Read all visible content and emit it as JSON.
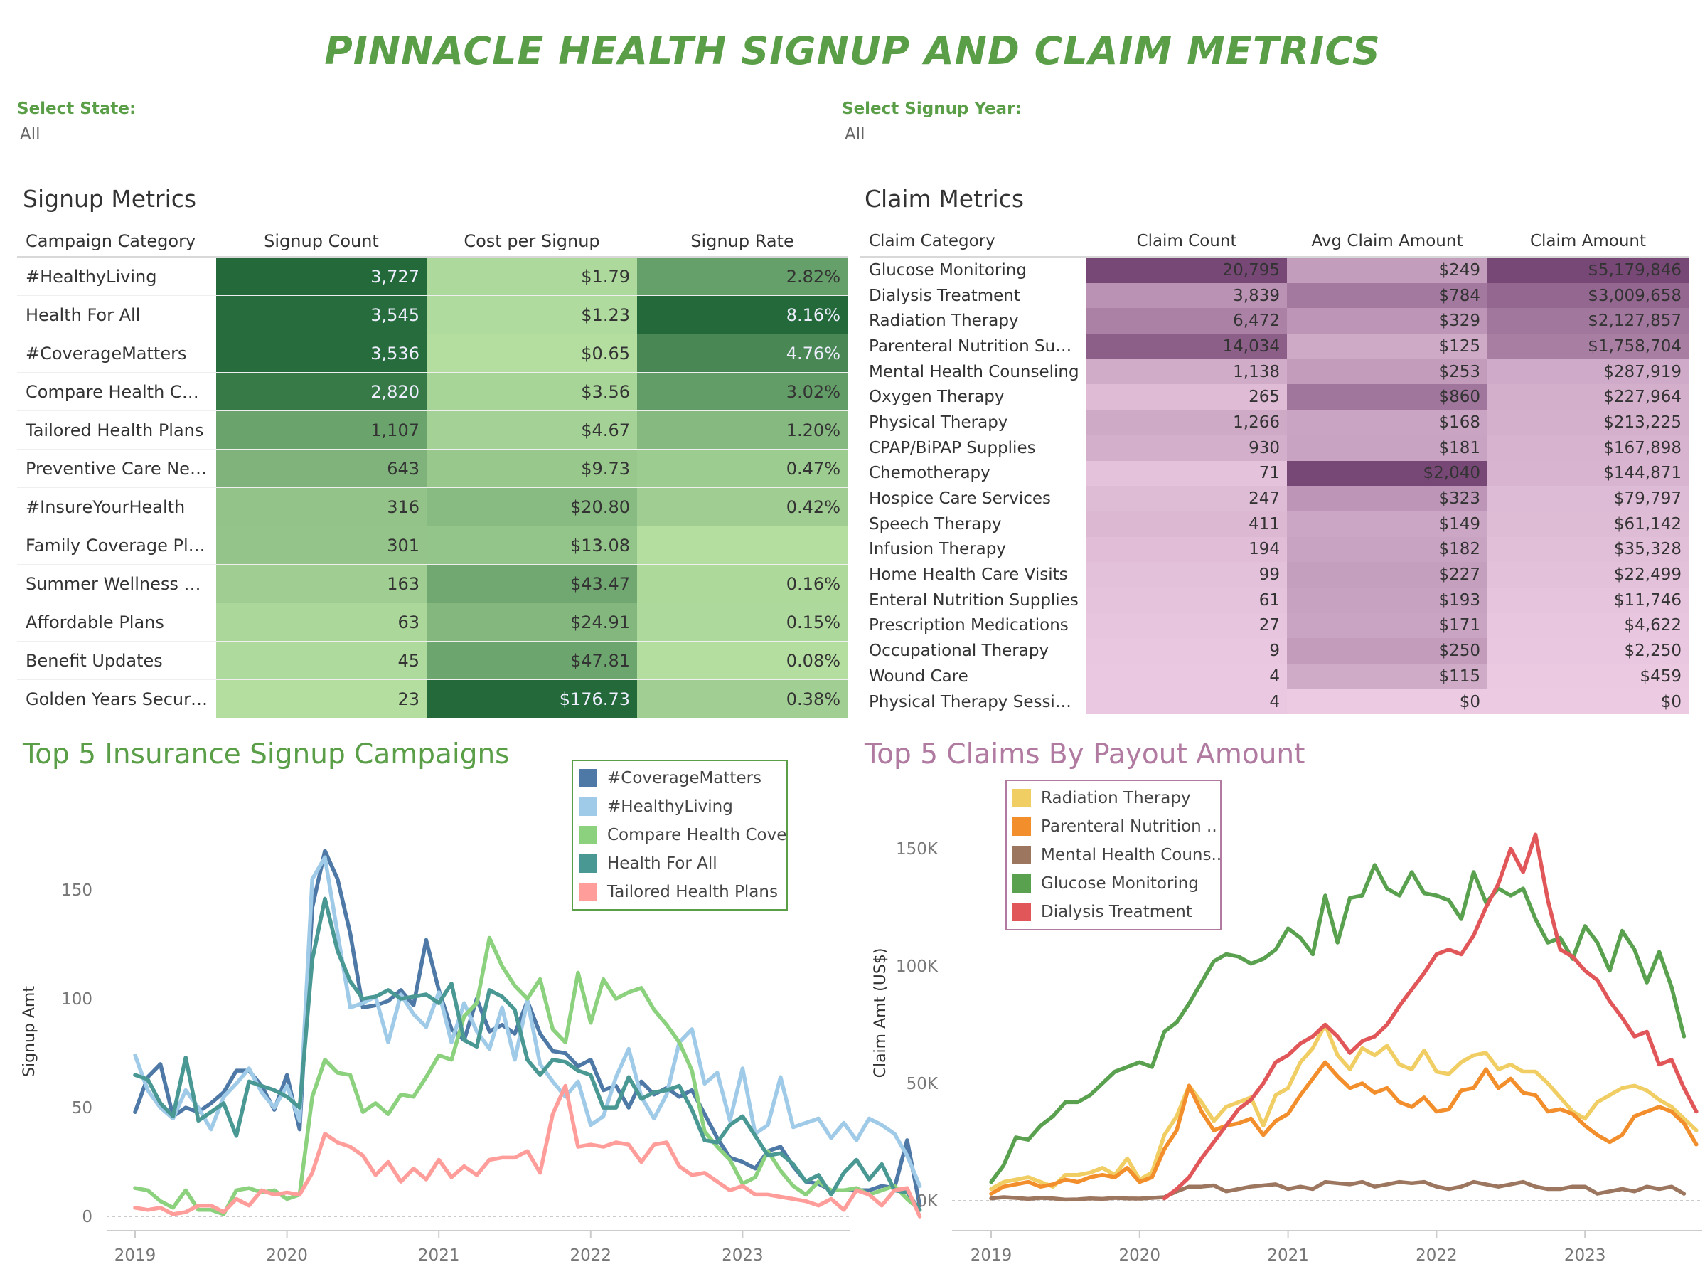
{
  "title": "PINNACLE HEALTH SIGNUP AND CLAIM METRICS",
  "filters": {
    "state": {
      "label": "Select State:",
      "value": "All"
    },
    "year": {
      "label": "Select Signup Year:",
      "value": "All"
    }
  },
  "signup_metrics": {
    "title": "Signup Metrics",
    "columns": [
      "Campaign Category",
      "Signup Count",
      "Cost per Signup",
      "Signup Rate"
    ],
    "rows": [
      {
        "category": "#HealthyLiving",
        "count": "3,727",
        "cost": "$1.79",
        "rate": "2.82%",
        "count_v": 3727,
        "cost_v": 1.79,
        "rate_v": 2.82
      },
      {
        "category": "Health For All",
        "count": "3,545",
        "cost": "$1.23",
        "rate": "8.16%",
        "count_v": 3545,
        "cost_v": 1.23,
        "rate_v": 8.16
      },
      {
        "category": "#CoverageMatters",
        "count": "3,536",
        "cost": "$0.65",
        "rate": "4.76%",
        "count_v": 3536,
        "cost_v": 0.65,
        "rate_v": 4.76
      },
      {
        "category": "Compare Health Cover..",
        "count": "2,820",
        "cost": "$3.56",
        "rate": "3.02%",
        "count_v": 2820,
        "cost_v": 3.56,
        "rate_v": 3.02
      },
      {
        "category": "Tailored Health Plans",
        "count": "1,107",
        "cost": "$4.67",
        "rate": "1.20%",
        "count_v": 1107,
        "cost_v": 4.67,
        "rate_v": 1.2
      },
      {
        "category": "Preventive Care News",
        "count": "643",
        "cost": "$9.73",
        "rate": "0.47%",
        "count_v": 643,
        "cost_v": 9.73,
        "rate_v": 0.47
      },
      {
        "category": "#InsureYourHealth",
        "count": "316",
        "cost": "$20.80",
        "rate": "0.42%",
        "count_v": 316,
        "cost_v": 20.8,
        "rate_v": 0.42
      },
      {
        "category": "Family Coverage Plan",
        "count": "301",
        "cost": "$13.08",
        "rate": "",
        "count_v": 301,
        "cost_v": 13.08,
        "rate_v": null
      },
      {
        "category": "Summer Wellness Tips",
        "count": "163",
        "cost": "$43.47",
        "rate": "0.16%",
        "count_v": 163,
        "cost_v": 43.47,
        "rate_v": 0.16
      },
      {
        "category": "Affordable Plans",
        "count": "63",
        "cost": "$24.91",
        "rate": "0.15%",
        "count_v": 63,
        "cost_v": 24.91,
        "rate_v": 0.15
      },
      {
        "category": "Benefit Updates",
        "count": "45",
        "cost": "$47.81",
        "rate": "0.08%",
        "count_v": 45,
        "cost_v": 47.81,
        "rate_v": 0.08
      },
      {
        "category": "Golden Years Security",
        "count": "23",
        "cost": "$176.73",
        "rate": "0.38%",
        "count_v": 23,
        "cost_v": 176.73,
        "rate_v": 0.38
      }
    ]
  },
  "claim_metrics": {
    "title": "Claim Metrics",
    "columns": [
      "Claim Category",
      "Claim Count",
      "Avg Claim Amount",
      "Claim Amount"
    ],
    "rows": [
      {
        "category": "Glucose Monitoring",
        "count": "20,795",
        "avg": "$249",
        "amount": "$5,179,846",
        "count_v": 20795,
        "avg_v": 249,
        "amount_v": 5179846
      },
      {
        "category": "Dialysis Treatment",
        "count": "3,839",
        "avg": "$784",
        "amount": "$3,009,658",
        "count_v": 3839,
        "avg_v": 784,
        "amount_v": 3009658
      },
      {
        "category": "Radiation Therapy",
        "count": "6,472",
        "avg": "$329",
        "amount": "$2,127,857",
        "count_v": 6472,
        "avg_v": 329,
        "amount_v": 2127857
      },
      {
        "category": "Parenteral Nutrition Supp..",
        "count": "14,034",
        "avg": "$125",
        "amount": "$1,758,704",
        "count_v": 14034,
        "avg_v": 125,
        "amount_v": 1758704
      },
      {
        "category": "Mental Health Counseling",
        "count": "1,138",
        "avg": "$253",
        "amount": "$287,919",
        "count_v": 1138,
        "avg_v": 253,
        "amount_v": 287919
      },
      {
        "category": "Oxygen Therapy",
        "count": "265",
        "avg": "$860",
        "amount": "$227,964",
        "count_v": 265,
        "avg_v": 860,
        "amount_v": 227964
      },
      {
        "category": "Physical Therapy",
        "count": "1,266",
        "avg": "$168",
        "amount": "$213,225",
        "count_v": 1266,
        "avg_v": 168,
        "amount_v": 213225
      },
      {
        "category": "CPAP/BiPAP Supplies",
        "count": "930",
        "avg": "$181",
        "amount": "$167,898",
        "count_v": 930,
        "avg_v": 181,
        "amount_v": 167898
      },
      {
        "category": "Chemotherapy",
        "count": "71",
        "avg": "$2,040",
        "amount": "$144,871",
        "count_v": 71,
        "avg_v": 2040,
        "amount_v": 144871
      },
      {
        "category": "Hospice Care Services",
        "count": "247",
        "avg": "$323",
        "amount": "$79,797",
        "count_v": 247,
        "avg_v": 323,
        "amount_v": 79797
      },
      {
        "category": "Speech Therapy",
        "count": "411",
        "avg": "$149",
        "amount": "$61,142",
        "count_v": 411,
        "avg_v": 149,
        "amount_v": 61142
      },
      {
        "category": "Infusion Therapy",
        "count": "194",
        "avg": "$182",
        "amount": "$35,328",
        "count_v": 194,
        "avg_v": 182,
        "amount_v": 35328
      },
      {
        "category": "Home Health Care Visits",
        "count": "99",
        "avg": "$227",
        "amount": "$22,499",
        "count_v": 99,
        "avg_v": 227,
        "amount_v": 22499
      },
      {
        "category": "Enteral Nutrition Supplies",
        "count": "61",
        "avg": "$193",
        "amount": "$11,746",
        "count_v": 61,
        "avg_v": 193,
        "amount_v": 11746
      },
      {
        "category": "Prescription Medications",
        "count": "27",
        "avg": "$171",
        "amount": "$4,622",
        "count_v": 27,
        "avg_v": 171,
        "amount_v": 4622
      },
      {
        "category": "Occupational Therapy",
        "count": "9",
        "avg": "$250",
        "amount": "$2,250",
        "count_v": 9,
        "avg_v": 250,
        "amount_v": 2250
      },
      {
        "category": "Wound Care",
        "count": "4",
        "avg": "$115",
        "amount": "$459",
        "count_v": 4,
        "avg_v": 115,
        "amount_v": 459
      },
      {
        "category": "Physical Therapy Sessions",
        "count": "4",
        "avg": "$0",
        "amount": "$0",
        "count_v": 4,
        "avg_v": 0,
        "amount_v": 0
      }
    ]
  },
  "colors": {
    "title_green": "#5a9e48",
    "claims_title": "#b07aa1",
    "green_dark": "#23693a",
    "green_light": "#b4dea0",
    "purple_dark": "#774876",
    "purple_light": "#eccae2"
  },
  "chart_data": [
    {
      "type": "line",
      "title": "Top 5 Insurance Signup Campaigns",
      "xlabel": "",
      "ylabel": "Signup Amt",
      "x_ticks": [
        "2019",
        "2020",
        "2021",
        "2022",
        "2023"
      ],
      "y_ticks": [
        "0",
        "50",
        "100",
        "150"
      ],
      "ylim": [
        0,
        170
      ],
      "x_start": "2019-01",
      "legend_position": "top-right",
      "series": [
        {
          "name": "#CoverageMatters",
          "color": "#4e79a7",
          "values": [
            48,
            64,
            70,
            46,
            50,
            48,
            52,
            57,
            67,
            67,
            60,
            49,
            65,
            40,
            142,
            168,
            155,
            130,
            96,
            97,
            99,
            104,
            97,
            127,
            104,
            86,
            81,
            100,
            85,
            88,
            84,
            99,
            84,
            76,
            75,
            69,
            72,
            58,
            60,
            50,
            62,
            56,
            59,
            55,
            58,
            47,
            36,
            27,
            25,
            22,
            30,
            32,
            23,
            16,
            15,
            12,
            12,
            12,
            12,
            14,
            13,
            35,
            5
          ]
        },
        {
          "name": "#HealthyLiving",
          "color": "#a0cbe8",
          "values": [
            74,
            58,
            50,
            45,
            58,
            50,
            40,
            55,
            61,
            68,
            57,
            50,
            60,
            44,
            155,
            165,
            130,
            96,
            98,
            101,
            80,
            102,
            93,
            87,
            103,
            80,
            98,
            85,
            77,
            96,
            72,
            99,
            70,
            62,
            55,
            62,
            42,
            46,
            64,
            77,
            55,
            45,
            56,
            80,
            86,
            61,
            66,
            44,
            68,
            38,
            42,
            64,
            41,
            43,
            45,
            36,
            43,
            35,
            45,
            42,
            38,
            28,
            14
          ]
        },
        {
          "name": "Compare Health Cove..",
          "color": "#8cd17d",
          "values": [
            13,
            12,
            7,
            4,
            12,
            3,
            3,
            1,
            12,
            13,
            11,
            12,
            8,
            10,
            55,
            72,
            66,
            65,
            48,
            52,
            47,
            56,
            55,
            64,
            74,
            72,
            92,
            98,
            128,
            115,
            106,
            100,
            109,
            86,
            80,
            112,
            89,
            109,
            100,
            103,
            105,
            95,
            88,
            80,
            67,
            39,
            32,
            26,
            15,
            18,
            30,
            21,
            14,
            10,
            16,
            12,
            12,
            13,
            10,
            12,
            14,
            8,
            3
          ]
        },
        {
          "name": "Health For All",
          "color": "#499894",
          "values": [
            65,
            63,
            52,
            46,
            73,
            44,
            48,
            52,
            37,
            62,
            60,
            58,
            55,
            50,
            118,
            146,
            122,
            108,
            100,
            101,
            104,
            100,
            101,
            102,
            98,
            107,
            81,
            78,
            104,
            101,
            95,
            72,
            65,
            72,
            71,
            67,
            65,
            50,
            50,
            64,
            54,
            57,
            58,
            60,
            49,
            35,
            34,
            42,
            46,
            37,
            28,
            29,
            24,
            16,
            19,
            10,
            20,
            26,
            17,
            24,
            12,
            11,
            3
          ]
        },
        {
          "name": "Tailored Health Plans",
          "color": "#ff9d9a",
          "values": [
            4,
            3,
            4,
            1,
            2,
            5,
            5,
            2,
            8,
            5,
            12,
            10,
            11,
            10,
            20,
            38,
            34,
            32,
            28,
            19,
            25,
            16,
            22,
            17,
            26,
            18,
            23,
            19,
            26,
            27,
            27,
            30,
            20,
            47,
            60,
            32,
            33,
            32,
            34,
            33,
            25,
            33,
            34,
            23,
            19,
            20,
            16,
            12,
            14,
            10,
            10,
            9,
            8,
            7,
            5,
            8,
            3,
            12,
            10,
            5,
            12,
            13,
            0
          ]
        }
      ]
    },
    {
      "type": "line",
      "title": "Top 5 Claims By Payout Amount",
      "xlabel": "",
      "ylabel": "Claim Amt (US$)",
      "x_ticks": [
        "2019",
        "2020",
        "2021",
        "2022",
        "2023"
      ],
      "y_ticks": [
        "0K",
        "50K",
        "100K",
        "150K"
      ],
      "ylim": [
        0,
        160000
      ],
      "x_start": "2019-01",
      "legend_position": "top-left",
      "series": [
        {
          "name": "Radiation Therapy",
          "color": "#f1ce63",
          "values": [
            5000,
            8000,
            9000,
            10000,
            8000,
            6000,
            11000,
            11000,
            12000,
            14000,
            11000,
            18000,
            9000,
            12000,
            28000,
            36000,
            49000,
            42000,
            34000,
            40000,
            42000,
            44000,
            32000,
            45000,
            48000,
            59000,
            65000,
            75000,
            62000,
            56000,
            65000,
            62000,
            66000,
            58000,
            56000,
            64000,
            55000,
            54000,
            59000,
            62000,
            63000,
            56000,
            58000,
            55000,
            55000,
            50000,
            44000,
            38000,
            35000,
            42000,
            45000,
            48000,
            49000,
            47000,
            43000,
            40000,
            35000,
            30000
          ]
        },
        {
          "name": "Parenteral Nutrition ..",
          "color": "#f28e2b",
          "values": [
            3000,
            6000,
            7000,
            8000,
            6000,
            7000,
            9000,
            8000,
            10000,
            11000,
            10000,
            14000,
            8000,
            10000,
            22000,
            30000,
            49000,
            38000,
            30000,
            32000,
            33000,
            35000,
            28000,
            34000,
            37000,
            45000,
            52000,
            59000,
            53000,
            48000,
            50000,
            46000,
            48000,
            42000,
            40000,
            44000,
            38000,
            39000,
            47000,
            48000,
            56000,
            48000,
            52000,
            46000,
            45000,
            38000,
            39000,
            37000,
            32000,
            28000,
            25000,
            28000,
            36000,
            38000,
            40000,
            38000,
            33000,
            24000
          ]
        },
        {
          "name": "Mental Health Couns..",
          "color": "#9d7660",
          "values": [
            1000,
            1500,
            1200,
            800,
            1200,
            1000,
            500,
            600,
            1000,
            800,
            1200,
            1000,
            900,
            1200,
            1500,
            4000,
            6000,
            6000,
            6500,
            4000,
            5000,
            6000,
            6500,
            7000,
            5000,
            6000,
            5000,
            8000,
            7500,
            7000,
            8000,
            6000,
            7000,
            8000,
            7500,
            8000,
            6000,
            5000,
            6000,
            8000,
            7000,
            6000,
            7000,
            8000,
            6000,
            5000,
            5000,
            6000,
            6000,
            3000,
            4000,
            5000,
            4000,
            6000,
            5000,
            6000,
            3000
          ]
        },
        {
          "name": "Glucose Monitoring",
          "color": "#59a14f",
          "values": [
            8000,
            15000,
            27000,
            26000,
            32000,
            36000,
            42000,
            42000,
            45000,
            50000,
            55000,
            57000,
            59000,
            57000,
            72000,
            76000,
            84000,
            93000,
            102000,
            105000,
            104000,
            101000,
            103000,
            107000,
            116000,
            112000,
            105000,
            130000,
            110000,
            129000,
            130000,
            143000,
            133000,
            130000,
            140000,
            131000,
            130000,
            128000,
            120000,
            140000,
            127000,
            133000,
            130000,
            133000,
            120000,
            110000,
            112000,
            103000,
            117000,
            110000,
            98000,
            115000,
            107000,
            93000,
            106000,
            91000,
            70000
          ]
        },
        {
          "name": "Dialysis Treatment",
          "color": "#e15759",
          "values": [
            null,
            null,
            null,
            null,
            null,
            null,
            null,
            null,
            null,
            null,
            null,
            null,
            null,
            null,
            1000,
            5000,
            10000,
            18000,
            25000,
            32000,
            39000,
            43000,
            50000,
            59000,
            62000,
            67000,
            70000,
            75000,
            70000,
            63000,
            68000,
            70000,
            75000,
            83000,
            90000,
            97000,
            105000,
            107000,
            105000,
            113000,
            125000,
            135000,
            150000,
            140000,
            156000,
            128000,
            107000,
            104000,
            98000,
            94000,
            85000,
            78000,
            70000,
            72000,
            58000,
            60000,
            48000,
            38000
          ]
        }
      ]
    }
  ]
}
